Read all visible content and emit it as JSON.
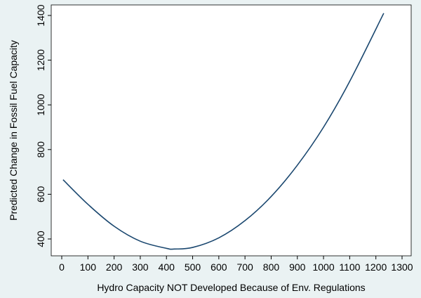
{
  "chart_data": {
    "type": "line",
    "title": "",
    "xlabel": "Hydro Capacity NOT Developed Because of Env. Regulations",
    "ylabel": "Predicted Change in Fossil Fuel Capacity",
    "xlim": [
      0,
      1300
    ],
    "ylim": [
      355,
      1410
    ],
    "x_ticks": [
      0,
      100,
      200,
      300,
      400,
      500,
      600,
      700,
      800,
      900,
      1000,
      1100,
      1200,
      1300
    ],
    "y_ticks": [
      400,
      600,
      800,
      1000,
      1200,
      1400
    ],
    "grid": false,
    "legend": "none",
    "series": [
      {
        "color": "#1a476f",
        "x": [
          5,
          100,
          200,
          300,
          400,
          430,
          500,
          600,
          700,
          800,
          900,
          1000,
          1100,
          1230
        ],
        "y": [
          665,
          555,
          457,
          390,
          358,
          355,
          362,
          405,
          482,
          590,
          730,
          900,
          1105,
          1410
        ]
      }
    ]
  },
  "colors": {
    "background": "#eaf2f3",
    "plot_background": "#ffffff",
    "line": "#1a476f"
  }
}
